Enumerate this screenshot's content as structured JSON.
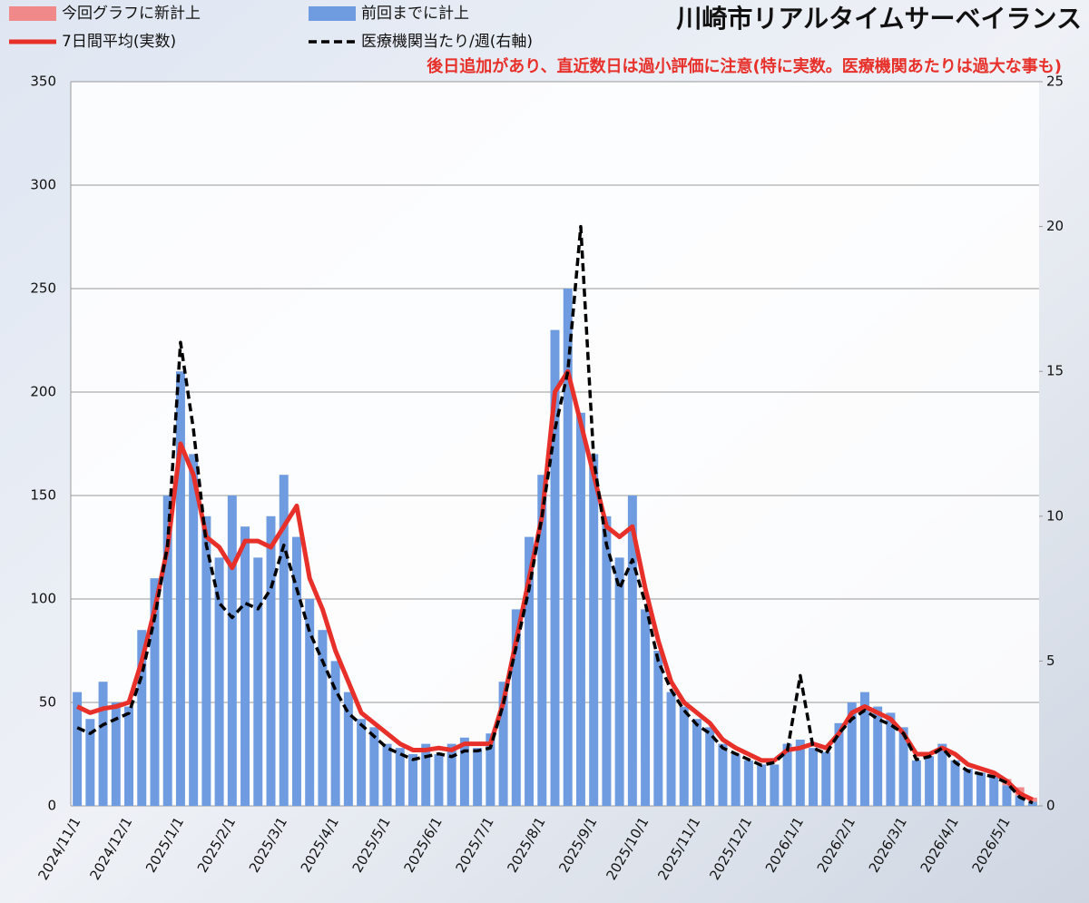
{
  "chart_data": {
    "type": "bar",
    "title": "川崎市リアルタイムサーベイランス",
    "subtitle": "後日追加があり、直近数日は過小評価に注意(特に実数。医療機関あたりは過大な事も)",
    "categories": [
      "2024/11/1",
      null,
      null,
      null,
      "2024/12/1",
      null,
      null,
      null,
      "2025/1/1",
      null,
      null,
      null,
      "2025/2/1",
      null,
      null,
      null,
      "2025/3/1",
      null,
      null,
      null,
      "2025/4/1",
      null,
      null,
      null,
      "2025/5/1",
      null,
      null,
      null,
      "2025/6/1",
      null,
      null,
      null,
      "2025/7/1",
      null,
      null,
      null,
      "2025/8/1",
      null,
      null,
      null,
      "2025/9/1",
      null,
      null,
      null,
      "2025/10/1",
      null,
      null,
      null,
      "2025/11/1",
      null,
      null,
      null,
      "2025/12/1",
      null,
      null,
      null,
      "2026/1/1",
      null,
      null,
      null,
      "2026/2/1",
      null,
      null,
      null,
      "2026/3/1",
      null,
      null,
      null,
      "2026/4/1",
      null,
      null,
      null,
      "2026/5/1",
      null,
      null
    ],
    "series": [
      {
        "name": "今回グラフに新計上",
        "type": "bar",
        "color": "#f08a8a",
        "values": [
          0,
          0,
          0,
          0,
          0,
          0,
          0,
          0,
          0,
          0,
          0,
          0,
          0,
          0,
          0,
          0,
          0,
          0,
          0,
          0,
          0,
          0,
          0,
          0,
          0,
          0,
          0,
          0,
          0,
          0,
          0,
          0,
          0,
          0,
          0,
          0,
          0,
          0,
          0,
          0,
          0,
          0,
          0,
          0,
          0,
          0,
          0,
          0,
          0,
          0,
          0,
          0,
          0,
          0,
          0,
          0,
          0,
          0,
          0,
          0,
          0,
          0,
          0,
          0,
          0,
          0,
          0,
          0,
          0,
          0,
          0,
          2,
          3,
          4,
          2
        ]
      },
      {
        "name": "前回までに計上",
        "type": "bar",
        "color": "#6f9be0",
        "values": [
          55,
          42,
          60,
          50,
          48,
          85,
          110,
          150,
          210,
          170,
          140,
          120,
          150,
          135,
          120,
          140,
          160,
          130,
          100,
          85,
          70,
          55,
          42,
          38,
          30,
          28,
          25,
          30,
          25,
          30,
          33,
          28,
          35,
          60,
          95,
          130,
          160,
          230,
          250,
          190,
          170,
          140,
          120,
          150,
          95,
          75,
          55,
          48,
          42,
          38,
          30,
          25,
          22,
          20,
          20,
          30,
          32,
          28,
          26,
          40,
          50,
          55,
          48,
          45,
          38,
          22,
          24,
          30,
          22,
          18,
          16,
          14,
          10,
          5,
          2
        ]
      },
      {
        "name": "7日間平均(実数)",
        "type": "line",
        "color": "#e8302a",
        "values": [
          48,
          45,
          47,
          48,
          50,
          70,
          95,
          125,
          175,
          160,
          130,
          125,
          115,
          128,
          128,
          125,
          135,
          145,
          110,
          95,
          75,
          60,
          45,
          40,
          35,
          30,
          27,
          27,
          28,
          27,
          30,
          30,
          30,
          50,
          80,
          110,
          140,
          200,
          210,
          185,
          160,
          135,
          130,
          135,
          105,
          80,
          60,
          50,
          45,
          40,
          32,
          28,
          25,
          22,
          22,
          27,
          28,
          30,
          28,
          35,
          45,
          48,
          45,
          42,
          35,
          25,
          25,
          28,
          25,
          20,
          18,
          16,
          12,
          6,
          3
        ]
      },
      {
        "name": "医療機関当たり/週(右軸)",
        "type": "line",
        "dashed": true,
        "axis": "y2",
        "color": "#000000",
        "values": [
          2.7,
          2.5,
          2.8,
          3.0,
          3.2,
          4.5,
          6.5,
          9,
          16,
          13,
          9,
          7,
          6.5,
          7,
          6.8,
          7.5,
          9,
          7.5,
          6,
          5,
          4,
          3.2,
          2.8,
          2.4,
          2,
          1.8,
          1.6,
          1.7,
          1.8,
          1.7,
          1.9,
          1.9,
          2,
          3.5,
          5.5,
          7.5,
          10,
          13,
          15,
          20,
          12,
          9,
          7.5,
          8.5,
          7,
          5,
          4,
          3.3,
          2.8,
          2.5,
          2,
          1.8,
          1.6,
          1.4,
          1.5,
          1.9,
          4.5,
          2,
          1.8,
          2.5,
          3,
          3.3,
          3,
          2.8,
          2.5,
          1.6,
          1.7,
          2,
          1.5,
          1.2,
          1.1,
          1,
          0.8,
          0.3,
          0.1
        ]
      }
    ],
    "ylim": [
      0,
      350
    ],
    "yticks": [
      0,
      50,
      100,
      150,
      200,
      250,
      300,
      350
    ],
    "y2lim": [
      0,
      25
    ],
    "y2ticks": [
      0,
      5,
      10,
      15,
      20,
      25
    ],
    "grid": true
  }
}
